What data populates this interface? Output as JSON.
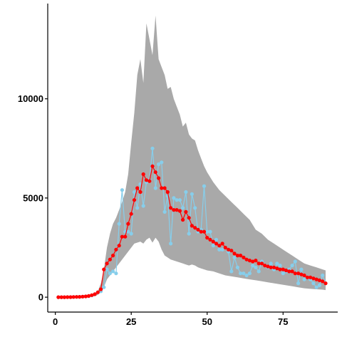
{
  "chart_data": {
    "type": "line",
    "title": "",
    "xlabel": "",
    "ylabel": "",
    "xlim": [
      -2.5,
      93
    ],
    "ylim": [
      -750,
      14800
    ],
    "grid": false,
    "legend": "none",
    "x_ticks": [
      0,
      25,
      50,
      75
    ],
    "x_tick_labels": [
      "0",
      "25",
      "50",
      "75"
    ],
    "y_ticks": [
      0,
      5000,
      10000
    ],
    "y_tick_labels": [
      "0",
      "5000",
      "10000"
    ],
    "colors": {
      "band": "#a9a9a9",
      "fitted": "#ff0000",
      "observed": "#87ceeb",
      "axis": "#000000"
    },
    "band": {
      "x": [
        1,
        3,
        5,
        7,
        9,
        11,
        13,
        14,
        15,
        16,
        17,
        18,
        19,
        20,
        21,
        22,
        23,
        24,
        25,
        26,
        27,
        28,
        29,
        30,
        31,
        32,
        33,
        34,
        35,
        36,
        37,
        38,
        39,
        40,
        41,
        42,
        43,
        44,
        45,
        46,
        47,
        48,
        49,
        50,
        52,
        54,
        56,
        58,
        60,
        62,
        64,
        66,
        68,
        70,
        72,
        74,
        76,
        78,
        80,
        82,
        84,
        86,
        88,
        89
      ],
      "upper": [
        0,
        0,
        10,
        20,
        40,
        70,
        150,
        300,
        700,
        1400,
        2500,
        3200,
        3700,
        4000,
        4400,
        4800,
        5300,
        6200,
        7800,
        9300,
        11200,
        12000,
        10800,
        13800,
        13000,
        12200,
        14200,
        12000,
        11600,
        11200,
        10500,
        10600,
        10000,
        9600,
        9200,
        8600,
        8800,
        8200,
        8000,
        7900,
        7400,
        7000,
        6600,
        6300,
        5800,
        5400,
        5100,
        4800,
        4500,
        4200,
        3900,
        3400,
        3200,
        2900,
        2700,
        2500,
        2300,
        2100,
        1900,
        1700,
        1600,
        1500,
        1400,
        1350
      ],
      "lower": [
        0,
        0,
        0,
        0,
        10,
        20,
        50,
        120,
        250,
        500,
        900,
        1100,
        1300,
        1500,
        1700,
        1900,
        2100,
        2300,
        2500,
        2700,
        2750,
        2800,
        2700,
        2900,
        3000,
        2750,
        3000,
        2800,
        2400,
        2100,
        2000,
        1900,
        1850,
        1800,
        1750,
        1700,
        1650,
        1600,
        1650,
        1600,
        1500,
        1450,
        1400,
        1350,
        1300,
        1200,
        1100,
        1050,
        1000,
        950,
        900,
        850,
        800,
        750,
        700,
        650,
        600,
        550,
        500,
        450,
        420,
        400,
        380,
        360
      ]
    },
    "series": [
      {
        "color": "#87ceeb",
        "x": [
          1,
          2,
          3,
          4,
          5,
          6,
          7,
          8,
          9,
          10,
          11,
          12,
          13,
          14,
          15,
          16,
          17,
          18,
          19,
          20,
          21,
          22,
          23,
          24,
          25,
          26,
          27,
          28,
          29,
          30,
          31,
          32,
          33,
          34,
          35,
          36,
          37,
          38,
          39,
          40,
          41,
          42,
          43,
          44,
          45,
          46,
          47,
          48,
          49,
          50,
          51,
          52,
          53,
          54,
          55,
          56,
          57,
          58,
          59,
          60,
          61,
          62,
          63,
          64,
          65,
          66,
          67,
          68,
          69,
          70,
          71,
          72,
          73,
          74,
          75,
          76,
          77,
          78,
          79,
          80,
          81,
          82,
          83,
          84,
          85,
          86,
          87,
          88,
          89
        ],
        "y": [
          0,
          0,
          0,
          5,
          5,
          10,
          15,
          20,
          30,
          40,
          50,
          90,
          150,
          250,
          300,
          500,
          1400,
          1200,
          1300,
          1200,
          3700,
          5400,
          3300,
          3300,
          3200,
          5300,
          4500,
          5700,
          4600,
          5800,
          5900,
          7500,
          5500,
          6700,
          6800,
          4300,
          5100,
          2700,
          5000,
          4900,
          4900,
          4500,
          5300,
          3200,
          5200,
          4500,
          3300,
          3400,
          5600,
          3300,
          3300,
          2600,
          2900,
          2400,
          2400,
          2500,
          2300,
          1300,
          2000,
          1500,
          1200,
          1200,
          1100,
          1200,
          1600,
          1500,
          1300,
          1800,
          1600,
          1500,
          1700,
          1400,
          1700,
          1600,
          1200,
          1300,
          1400,
          1600,
          1800,
          700,
          1400,
          900,
          1000,
          900,
          700,
          500,
          600,
          1100,
          700
        ]
      },
      {
        "color": "#ff0000",
        "x": [
          1,
          2,
          3,
          4,
          5,
          6,
          7,
          8,
          9,
          10,
          11,
          12,
          13,
          14,
          15,
          16,
          17,
          18,
          19,
          20,
          21,
          22,
          23,
          24,
          25,
          26,
          27,
          28,
          29,
          30,
          31,
          32,
          33,
          34,
          35,
          36,
          37,
          38,
          39,
          40,
          41,
          42,
          43,
          44,
          45,
          46,
          47,
          48,
          49,
          50,
          51,
          52,
          53,
          54,
          55,
          56,
          57,
          58,
          59,
          60,
          61,
          62,
          63,
          64,
          65,
          66,
          67,
          68,
          69,
          70,
          71,
          72,
          73,
          74,
          75,
          76,
          77,
          78,
          79,
          80,
          81,
          82,
          83,
          84,
          85,
          86,
          87,
          88,
          89
        ],
        "y": [
          0,
          0,
          0,
          5,
          5,
          10,
          15,
          20,
          30,
          40,
          60,
          100,
          150,
          250,
          400,
          1400,
          1700,
          1900,
          2100,
          2400,
          2600,
          3050,
          3050,
          3700,
          4200,
          4900,
          5500,
          5300,
          6200,
          5900,
          5850,
          6600,
          6300,
          6000,
          5500,
          5500,
          5300,
          4500,
          4400,
          4400,
          4350,
          3900,
          4300,
          4000,
          3600,
          3500,
          3400,
          3300,
          3300,
          3000,
          2900,
          2800,
          2700,
          2600,
          2700,
          2500,
          2400,
          2350,
          2200,
          2100,
          2100,
          2000,
          1900,
          1850,
          1800,
          1850,
          1700,
          1700,
          1600,
          1550,
          1500,
          1500,
          1450,
          1400,
          1400,
          1350,
          1300,
          1300,
          1200,
          1200,
          1150,
          1100,
          1000,
          1000,
          950,
          900,
          850,
          800,
          700
        ]
      }
    ]
  }
}
